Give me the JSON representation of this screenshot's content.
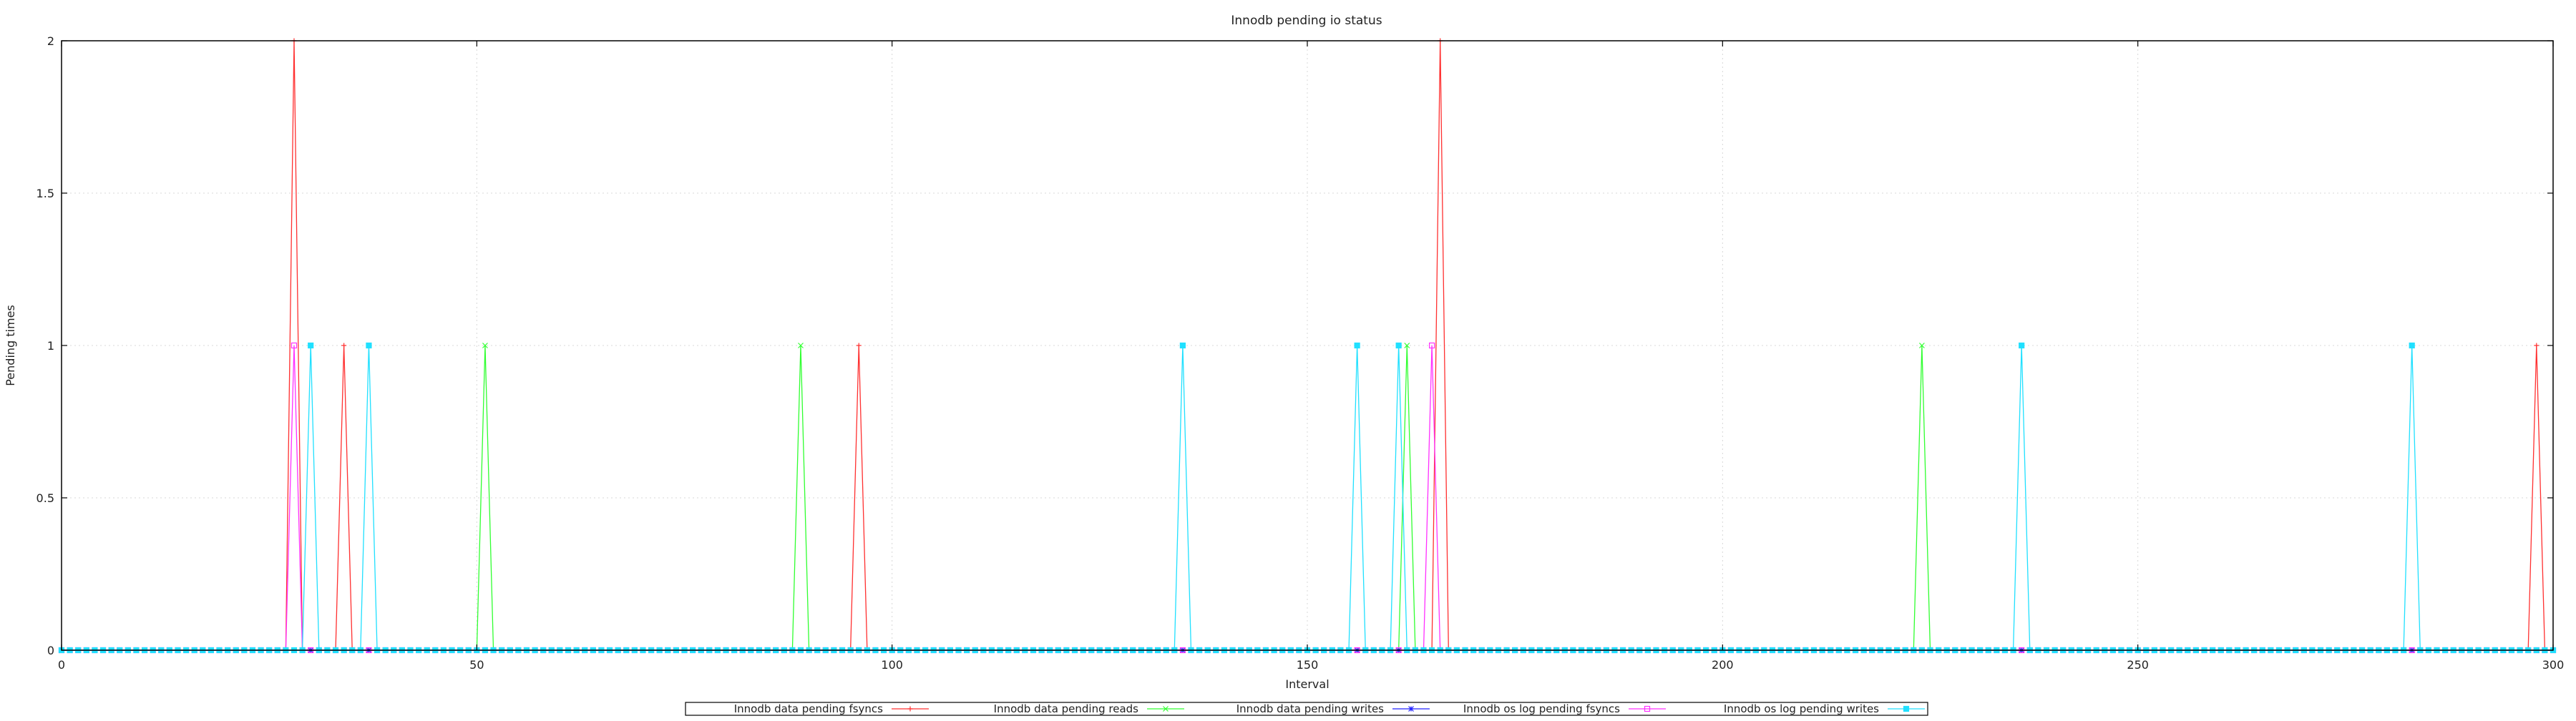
{
  "chart_data": {
    "type": "line",
    "title": "Innodb pending io status",
    "xlabel": "Interval",
    "ylabel": "Pending times",
    "xlim": [
      0,
      300
    ],
    "ylim": [
      0,
      2
    ],
    "xticks": [
      0,
      50,
      100,
      150,
      200,
      250,
      300
    ],
    "yticks": [
      0,
      0.5,
      1,
      1.5,
      2
    ],
    "ytick_labels": [
      "0",
      "0.5",
      "1",
      "1.5",
      "2"
    ],
    "grid": true,
    "legend_position": "bottom-center",
    "n_points": 301,
    "series": [
      {
        "name": "Innodb data pending fsyncs",
        "color": "#ff3030",
        "marker": "plus",
        "nonzero": [
          [
            28,
            2
          ],
          [
            34,
            1
          ],
          [
            96,
            1
          ],
          [
            166,
            2
          ],
          [
            298,
            1
          ]
        ]
      },
      {
        "name": "Innodb data pending reads",
        "color": "#30ff30",
        "marker": "cross",
        "nonzero": [
          [
            51,
            1
          ],
          [
            89,
            1
          ],
          [
            162,
            1
          ],
          [
            224,
            1
          ]
        ]
      },
      {
        "name": "Innodb data pending writes",
        "color": "#2020ff",
        "marker": "star",
        "nonzero": []
      },
      {
        "name": "Innodb os log pending fsyncs",
        "color": "#ff30ff",
        "marker": "square",
        "nonzero": [
          [
            28,
            1
          ],
          [
            165,
            1
          ]
        ]
      },
      {
        "name": "Innodb os log pending writes",
        "color": "#20e0ff",
        "marker": "filled-square",
        "nonzero": [
          [
            30,
            1
          ],
          [
            37,
            1
          ],
          [
            135,
            1
          ],
          [
            156,
            1
          ],
          [
            161,
            1
          ],
          [
            236,
            1
          ],
          [
            283,
            1
          ]
        ]
      }
    ]
  }
}
